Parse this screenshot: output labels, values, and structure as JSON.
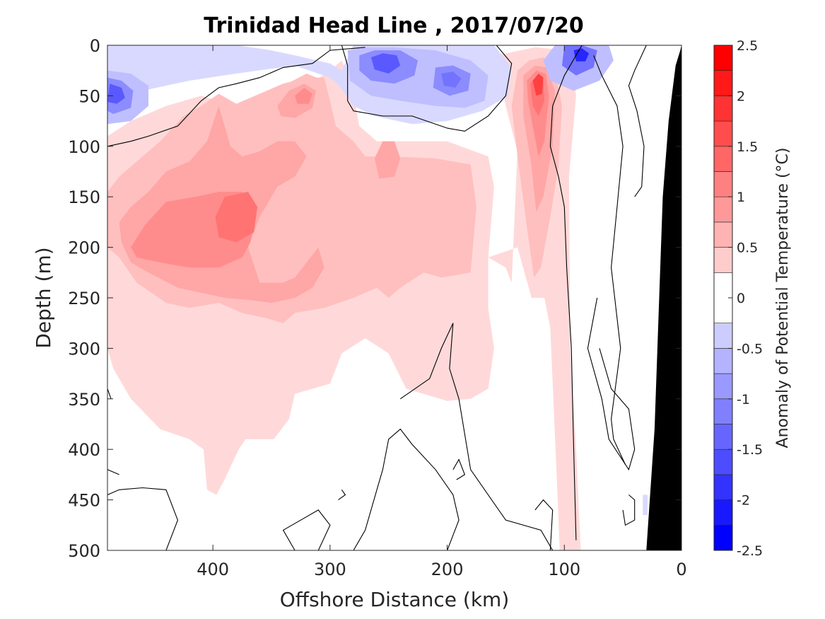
{
  "chart_data": {
    "type": "heatmap",
    "subtype": "filled-contour-section",
    "title": "Trinidad Head Line , 2017/07/20",
    "xlabel": "Offshore Distance (km)",
    "ylabel": "Depth (m)",
    "colorbar_label": "Anomaly of Potential Temperature (°C)",
    "xlim": [
      490,
      0
    ],
    "x_reversed": true,
    "ylim": [
      0,
      500
    ],
    "y_reversed": true,
    "x_ticks": [
      400,
      300,
      200,
      100,
      0
    ],
    "y_ticks": [
      0,
      50,
      100,
      150,
      200,
      250,
      300,
      350,
      400,
      450,
      500
    ],
    "colorbar_ticks": [
      2.5,
      2,
      1.5,
      1,
      0.5,
      0,
      -0.5,
      -1,
      -1.5,
      -2,
      -2.5
    ],
    "colorbar_range": [
      -2.5,
      2.5
    ],
    "contour_levels": [
      -2.5,
      -2.25,
      -2.0,
      -1.75,
      -1.5,
      -1.25,
      -1.0,
      -0.75,
      -0.5,
      -0.25,
      0.25,
      0.5,
      0.75,
      1.0,
      1.25,
      1.5,
      1.75,
      2.0,
      2.25,
      2.5
    ],
    "colors": {
      "warm_max": "#ff0000",
      "cold_max": "#0000ff",
      "neutral": "#ffffff",
      "bathymetry": "#000000",
      "zero_contour": "#000000"
    },
    "features": [
      {
        "kind": "warm",
        "x_km": 395,
        "depth_m": 160,
        "anomaly": 1.25,
        "note": "deep warm core"
      },
      {
        "kind": "warm",
        "x_km": 320,
        "depth_m": 45,
        "anomaly": 1.25
      },
      {
        "kind": "warm",
        "x_km": 122,
        "depth_m": 35,
        "anomaly": 2.0,
        "note": "near-shore warm jet"
      },
      {
        "kind": "cold",
        "x_km": 482,
        "depth_m": 45,
        "anomaly": -1.75
      },
      {
        "kind": "cold",
        "x_km": 250,
        "depth_m": 15,
        "anomaly": -1.75
      },
      {
        "kind": "cold",
        "x_km": 195,
        "depth_m": 35,
        "anomaly": -1.25
      },
      {
        "kind": "cold",
        "x_km": 85,
        "depth_m": 10,
        "anomaly": -2.0
      }
    ]
  }
}
